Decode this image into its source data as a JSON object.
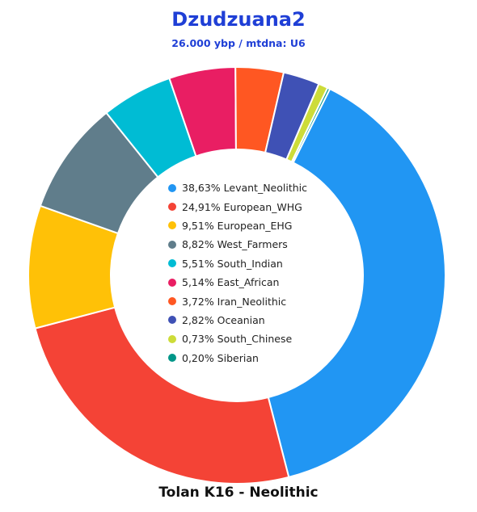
{
  "header": {
    "title": "Dzudzuana2",
    "subtitle": "26.000 ybp / mtdna: U6"
  },
  "footer": {
    "caption": "Tolan K16 - Neolithic"
  },
  "chart_data": {
    "type": "pie",
    "title": "Dzudzuana2",
    "subtitle": "26.000 ybp / mtdna: U6",
    "legend_position": "center",
    "slices": [
      {
        "label": "Levant_Neolithic",
        "value": 38.63,
        "text": "38,63% Levant_Neolithic",
        "color": "#2196f3"
      },
      {
        "label": "European_WHG",
        "value": 24.91,
        "text": "24,91% European_WHG",
        "color": "#f44336"
      },
      {
        "label": "European_EHG",
        "value": 9.51,
        "text": "9,51% European_EHG",
        "color": "#ffc107"
      },
      {
        "label": "West_Farmers",
        "value": 8.82,
        "text": "8,82% West_Farmers",
        "color": "#607d8b"
      },
      {
        "label": "South_Indian",
        "value": 5.51,
        "text": "5,51% South_Indian",
        "color": "#00bcd4"
      },
      {
        "label": "East_African",
        "value": 5.14,
        "text": "5,14% East_African",
        "color": "#e91e63"
      },
      {
        "label": "Iran_Neolithic",
        "value": 3.72,
        "text": "3,72% Iran_Neolithic",
        "color": "#ff5722"
      },
      {
        "label": "Oceanian",
        "value": 2.82,
        "text": "2,82% Oceanian",
        "color": "#3f51b5"
      },
      {
        "label": "South_Chinese",
        "value": 0.73,
        "text": "0,73% South_Chinese",
        "color": "#cddc39"
      },
      {
        "label": "Siberian",
        "value": 0.2,
        "text": "0,20% Siberian",
        "color": "#009688"
      }
    ]
  }
}
